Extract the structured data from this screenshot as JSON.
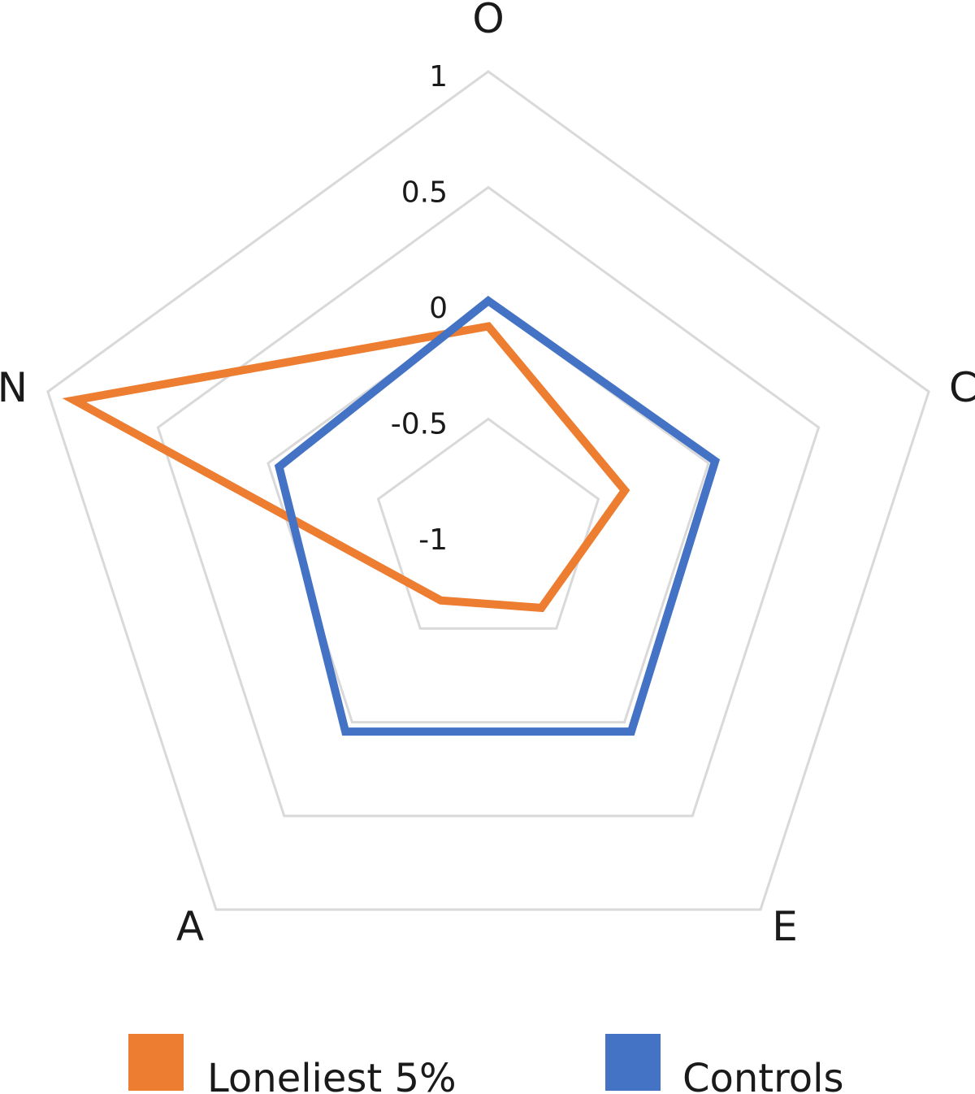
{
  "chart_data": {
    "type": "radar",
    "categories": [
      "O",
      "C",
      "E",
      "A",
      "N"
    ],
    "rlim": [
      -1,
      1
    ],
    "ticks": [
      "1",
      "0.5",
      "0",
      "-0.5",
      "-1"
    ],
    "tick_values": [
      1,
      0.5,
      0,
      -0.5,
      -1
    ],
    "grid": true,
    "legend_position": "bottom",
    "series": [
      {
        "name": "Loneliest 5%",
        "color": "#ED7D31",
        "values": [
          -0.1,
          -0.38,
          -0.61,
          -0.65,
          0.88
        ]
      },
      {
        "name": "Controls",
        "color": "#4472C4",
        "values": [
          0.01,
          0.03,
          0.05,
          0.05,
          -0.05
        ]
      }
    ],
    "grid_color": "#d9d9d9"
  }
}
